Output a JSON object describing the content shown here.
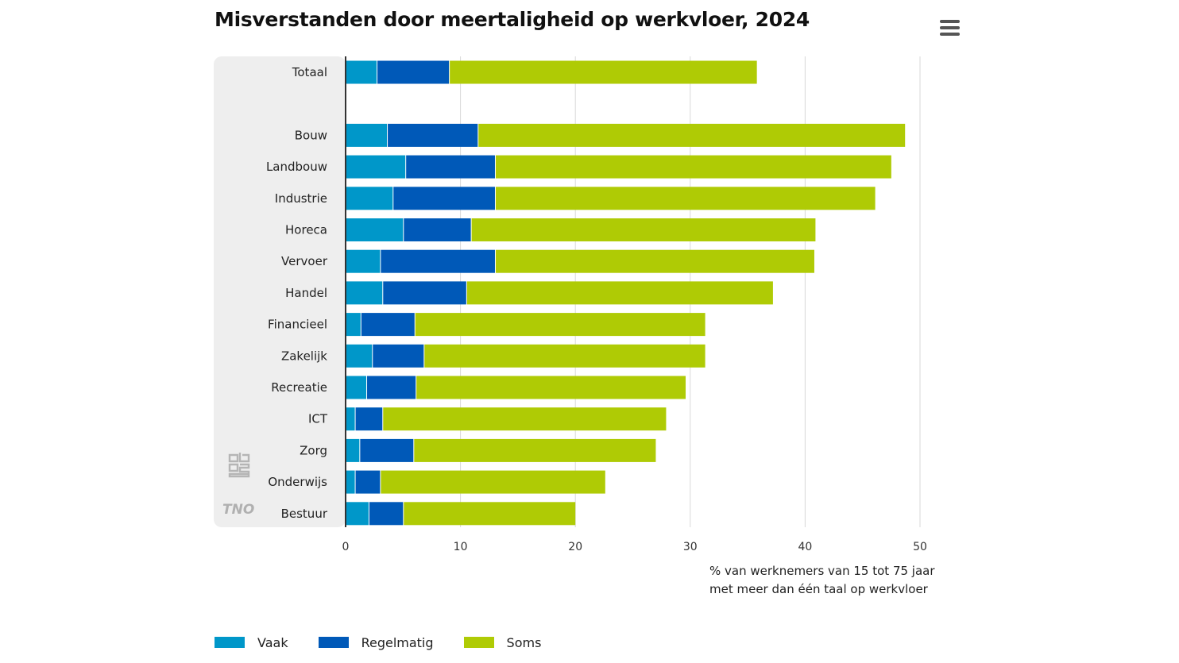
{
  "header": {
    "title": "Misverstanden door meertaligheid op werkvloer, 2024",
    "menu_icon": "hamburger-menu-icon"
  },
  "branding": {
    "cbs_logo": "cbs",
    "tno_logo": "TNO"
  },
  "colors": {
    "vaak": "#0097c9",
    "regelmatig": "#0059b8",
    "soms": "#afcb05",
    "panel": "#eeeeee"
  },
  "axis_note": {
    "line1": "% van werknemers van 15 tot 75 jaar",
    "line2": "met meer dan één taal op werkvloer"
  },
  "chart_data": {
    "type": "bar",
    "orientation": "horizontal",
    "stacked": true,
    "title": "Misverstanden door meertaligheid op werkvloer, 2024",
    "xlabel": "% van werknemers van 15 tot 75 jaar met meer dan één taal op werkvloer",
    "ylabel": "",
    "xlim": [
      0,
      50
    ],
    "xticks": [
      0,
      10,
      20,
      30,
      40,
      50
    ],
    "grid": true,
    "legend_position": "bottom-left",
    "categories": [
      "Totaal",
      "",
      "Bouw",
      "Landbouw",
      "Industrie",
      "Horeca",
      "Vervoer",
      "Handel",
      "Financieel",
      "Zakelijk",
      "Recreatie",
      "ICT",
      "Zorg",
      "Onderwijs",
      "Bestuur"
    ],
    "series": [
      {
        "name": "Vaak",
        "values": [
          2.7,
          null,
          3.6,
          5.2,
          4.1,
          5.0,
          3.0,
          3.2,
          1.3,
          2.3,
          1.8,
          0.8,
          1.2,
          0.8,
          2.0
        ]
      },
      {
        "name": "Regelmatig",
        "values": [
          6.3,
          null,
          7.9,
          7.8,
          8.9,
          5.9,
          10.0,
          7.3,
          4.7,
          4.5,
          4.3,
          2.4,
          4.7,
          2.2,
          3.0
        ]
      },
      {
        "name": "Soms",
        "values": [
          26.8,
          null,
          37.2,
          34.5,
          33.1,
          30.0,
          27.8,
          26.7,
          25.3,
          24.5,
          23.5,
          24.7,
          21.1,
          19.6,
          15.0
        ]
      }
    ]
  }
}
